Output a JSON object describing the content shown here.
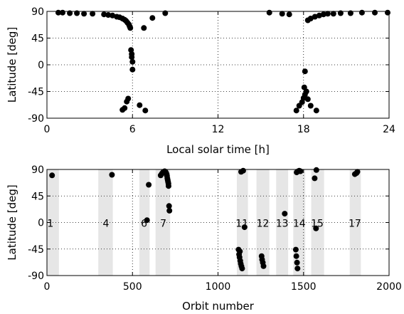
{
  "chart_data": [
    {
      "type": "scatter",
      "xlabel": "Local solar time [h]",
      "ylabel": "Latitude [deg]",
      "xlim": [
        0,
        24
      ],
      "ylim": [
        -90,
        90
      ],
      "xticks": [
        "0",
        "6",
        "12",
        "18",
        "24"
      ],
      "yticks": [
        "90",
        "45",
        "0",
        "-45",
        "-90"
      ],
      "grid": true,
      "points": [
        [
          0.8,
          88
        ],
        [
          1.1,
          88
        ],
        [
          1.6,
          87
        ],
        [
          2.1,
          87
        ],
        [
          2.6,
          86
        ],
        [
          3.2,
          86
        ],
        [
          4.0,
          85
        ],
        [
          4.3,
          84
        ],
        [
          4.6,
          83
        ],
        [
          4.9,
          81
        ],
        [
          5.1,
          80
        ],
        [
          5.3,
          78
        ],
        [
          5.45,
          76
        ],
        [
          5.55,
          74
        ],
        [
          5.65,
          71
        ],
        [
          5.75,
          68
        ],
        [
          5.8,
          65
        ],
        [
          5.85,
          62
        ],
        [
          5.9,
          25
        ],
        [
          5.95,
          18
        ],
        [
          5.95,
          13
        ],
        [
          6.0,
          5
        ],
        [
          6.0,
          -8
        ],
        [
          5.6,
          -62
        ],
        [
          5.7,
          -57
        ],
        [
          5.45,
          -73
        ],
        [
          5.3,
          -76
        ],
        [
          6.5,
          -68
        ],
        [
          6.9,
          -77
        ],
        [
          6.8,
          62
        ],
        [
          7.4,
          79
        ],
        [
          8.3,
          87
        ],
        [
          15.6,
          88
        ],
        [
          16.5,
          86
        ],
        [
          17.0,
          85
        ],
        [
          17.5,
          -77
        ],
        [
          17.7,
          -69
        ],
        [
          17.9,
          -63
        ],
        [
          18.0,
          -56
        ],
        [
          18.1,
          -50
        ],
        [
          18.2,
          -45
        ],
        [
          18.05,
          -38
        ],
        [
          18.3,
          -58
        ],
        [
          18.5,
          -69
        ],
        [
          18.9,
          -77
        ],
        [
          18.1,
          -11
        ],
        [
          18.3,
          75
        ],
        [
          18.5,
          78
        ],
        [
          18.8,
          81
        ],
        [
          19.1,
          83
        ],
        [
          19.4,
          85
        ],
        [
          19.7,
          86
        ],
        [
          20.1,
          86
        ],
        [
          20.6,
          87
        ],
        [
          21.3,
          87
        ],
        [
          22.1,
          88
        ],
        [
          23.0,
          88
        ],
        [
          23.9,
          88
        ]
      ]
    },
    {
      "type": "scatter",
      "xlabel": "Orbit number",
      "ylabel": "Latitude [deg]",
      "xlim": [
        0,
        2000
      ],
      "ylim": [
        -90,
        90
      ],
      "xticks": [
        "0",
        "500",
        "1000",
        "1500",
        "2000"
      ],
      "yticks": [
        "90",
        "45",
        "0",
        "-45",
        "-90"
      ],
      "grid": true,
      "bands": [
        {
          "label": "1",
          "x0": 0,
          "x1": 70,
          "label_x": 20
        },
        {
          "label": "4",
          "x0": 300,
          "x1": 385,
          "label_x": 345
        },
        {
          "label": "6",
          "x0": 540,
          "x1": 600,
          "label_x": 568
        },
        {
          "label": "7",
          "x0": 635,
          "x1": 720,
          "label_x": 680
        },
        {
          "label": "11",
          "x0": 1110,
          "x1": 1175,
          "label_x": 1140
        },
        {
          "label": "12",
          "x0": 1225,
          "x1": 1300,
          "label_x": 1262
        },
        {
          "label": "13",
          "x0": 1340,
          "x1": 1410,
          "label_x": 1375
        },
        {
          "label": "14",
          "x0": 1440,
          "x1": 1510,
          "label_x": 1475
        },
        {
          "label": "15",
          "x0": 1545,
          "x1": 1620,
          "label_x": 1580
        },
        {
          "label": "17",
          "x0": 1770,
          "x1": 1835,
          "label_x": 1800
        }
      ],
      "points": [
        [
          30,
          80
        ],
        [
          380,
          81
        ],
        [
          585,
          4
        ],
        [
          595,
          64
        ],
        [
          665,
          80
        ],
        [
          672,
          83
        ],
        [
          678,
          85
        ],
        [
          683,
          86
        ],
        [
          688,
          87
        ],
        [
          693,
          86
        ],
        [
          697,
          84
        ],
        [
          700,
          82
        ],
        [
          702,
          79
        ],
        [
          704,
          75
        ],
        [
          706,
          72
        ],
        [
          708,
          69
        ],
        [
          710,
          66
        ],
        [
          711,
          62
        ],
        [
          714,
          28
        ],
        [
          716,
          20
        ],
        [
          1120,
          -46
        ],
        [
          1123,
          -54
        ],
        [
          1126,
          -59
        ],
        [
          1130,
          -65
        ],
        [
          1133,
          -70
        ],
        [
          1137,
          -74
        ],
        [
          1141,
          -78
        ],
        [
          1128,
          -49
        ],
        [
          1135,
          86
        ],
        [
          1147,
          88
        ],
        [
          1155,
          -8
        ],
        [
          1255,
          -57
        ],
        [
          1258,
          -63
        ],
        [
          1262,
          -68
        ],
        [
          1266,
          -74
        ],
        [
          1390,
          15
        ],
        [
          1455,
          -46
        ],
        [
          1458,
          -57
        ],
        [
          1462,
          -68
        ],
        [
          1465,
          -78
        ],
        [
          1460,
          85
        ],
        [
          1468,
          87
        ],
        [
          1475,
          88
        ],
        [
          1482,
          87
        ],
        [
          1565,
          75
        ],
        [
          1575,
          89
        ],
        [
          1573,
          -10
        ],
        [
          1800,
          82
        ],
        [
          1810,
          84
        ],
        [
          1815,
          86
        ]
      ]
    }
  ]
}
